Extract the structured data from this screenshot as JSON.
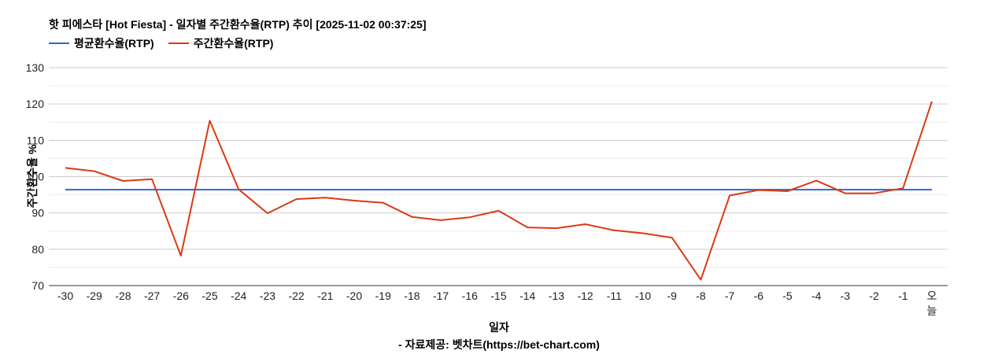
{
  "title": "핫 피에스타 [Hot Fiesta] - 일자별 주간환수율(RTP) 추이 [2025-11-02 00:37:25]",
  "legend": [
    {
      "label": "평균환수율(RTP)",
      "color": "#3366cc"
    },
    {
      "label": "주간환수율(RTP)",
      "color": "#dc3912"
    }
  ],
  "xlabel": "일자",
  "ylabel": "주간환수율 %",
  "source": "- 자료제공: 벳차트(https://bet-chart.com)",
  "chart_data": {
    "type": "line",
    "title": "핫 피에스타 [Hot Fiesta] - 일자별 주간환수율(RTP) 추이 [2025-11-02 00:37:25]",
    "xlabel": "일자",
    "ylabel": "주간환수율 %",
    "ylim": [
      70,
      130
    ],
    "yticks": [
      70,
      80,
      90,
      100,
      110,
      120,
      130
    ],
    "grid": true,
    "legend_position": "top",
    "categories": [
      "-30",
      "-29",
      "-28",
      "-27",
      "-26",
      "-25",
      "-24",
      "-23",
      "-22",
      "-21",
      "-20",
      "-19",
      "-18",
      "-17",
      "-16",
      "-15",
      "-14",
      "-13",
      "-12",
      "-11",
      "-10",
      "-9",
      "-8",
      "-7",
      "-6",
      "-5",
      "-4",
      "-3",
      "-2",
      "-1",
      "오늘"
    ],
    "series": [
      {
        "name": "평균환수율(RTP)",
        "color": "#3366cc",
        "values": [
          96.4,
          96.4,
          96.4,
          96.4,
          96.4,
          96.4,
          96.4,
          96.4,
          96.4,
          96.4,
          96.4,
          96.4,
          96.4,
          96.4,
          96.4,
          96.4,
          96.4,
          96.4,
          96.4,
          96.4,
          96.4,
          96.4,
          96.4,
          96.4,
          96.4,
          96.4,
          96.4,
          96.4,
          96.4,
          96.4,
          96.4
        ]
      },
      {
        "name": "주간환수율(RTP)",
        "color": "#dc3912",
        "values": [
          102.4,
          101.5,
          98.8,
          99.3,
          78.2,
          115.4,
          96.5,
          89.9,
          93.8,
          94.2,
          93.4,
          92.8,
          88.9,
          88.0,
          88.8,
          90.6,
          86.0,
          85.8,
          86.9,
          85.2,
          84.4,
          83.2,
          71.6,
          94.8,
          96.3,
          96.0,
          98.9,
          95.4,
          95.4,
          96.8,
          120.7
        ]
      }
    ]
  }
}
